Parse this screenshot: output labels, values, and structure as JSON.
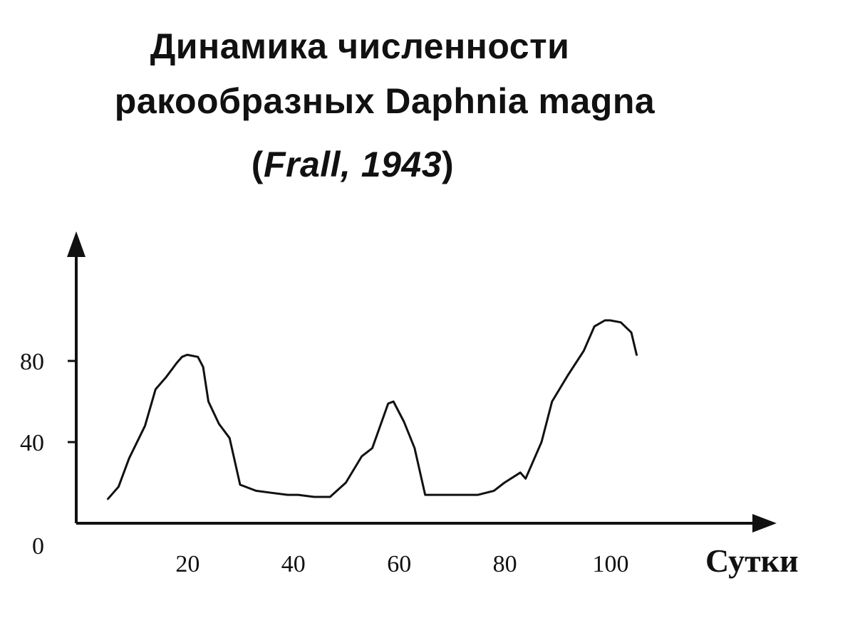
{
  "chart_data": {
    "type": "line",
    "title_line1": "Динамика численности",
    "title_line2": "ракообразных Daphnia magna",
    "source_author": "Frall, 1943",
    "xlabel": "Сутки",
    "ylabel": "",
    "x_ticks": [
      "20",
      "40",
      "60",
      "80",
      "100"
    ],
    "y_ticks": [
      "0",
      "40",
      "80"
    ],
    "xlim": [
      0,
      118
    ],
    "ylim": [
      0,
      130
    ],
    "grid": false,
    "series": [
      {
        "x": [
          6,
          8,
          10,
          13,
          15,
          17,
          19,
          20,
          21,
          23,
          24,
          25,
          27,
          29,
          31,
          34,
          37,
          40,
          42,
          45,
          48,
          51,
          54,
          56,
          59,
          60,
          62,
          64,
          66,
          68,
          70,
          73,
          76,
          79,
          81,
          84,
          85,
          88,
          90,
          93,
          96,
          98,
          100,
          101,
          103,
          105,
          106
        ],
        "values": [
          12,
          18,
          32,
          48,
          66,
          72,
          79,
          82,
          83,
          82,
          77,
          60,
          49,
          42,
          19,
          16,
          15,
          14,
          14,
          13,
          13,
          20,
          33,
          37,
          59,
          60,
          50,
          37,
          14,
          14,
          14,
          14,
          14,
          16,
          20,
          25,
          22,
          40,
          60,
          73,
          85,
          97,
          100,
          100,
          99,
          94,
          83
        ]
      }
    ]
  }
}
